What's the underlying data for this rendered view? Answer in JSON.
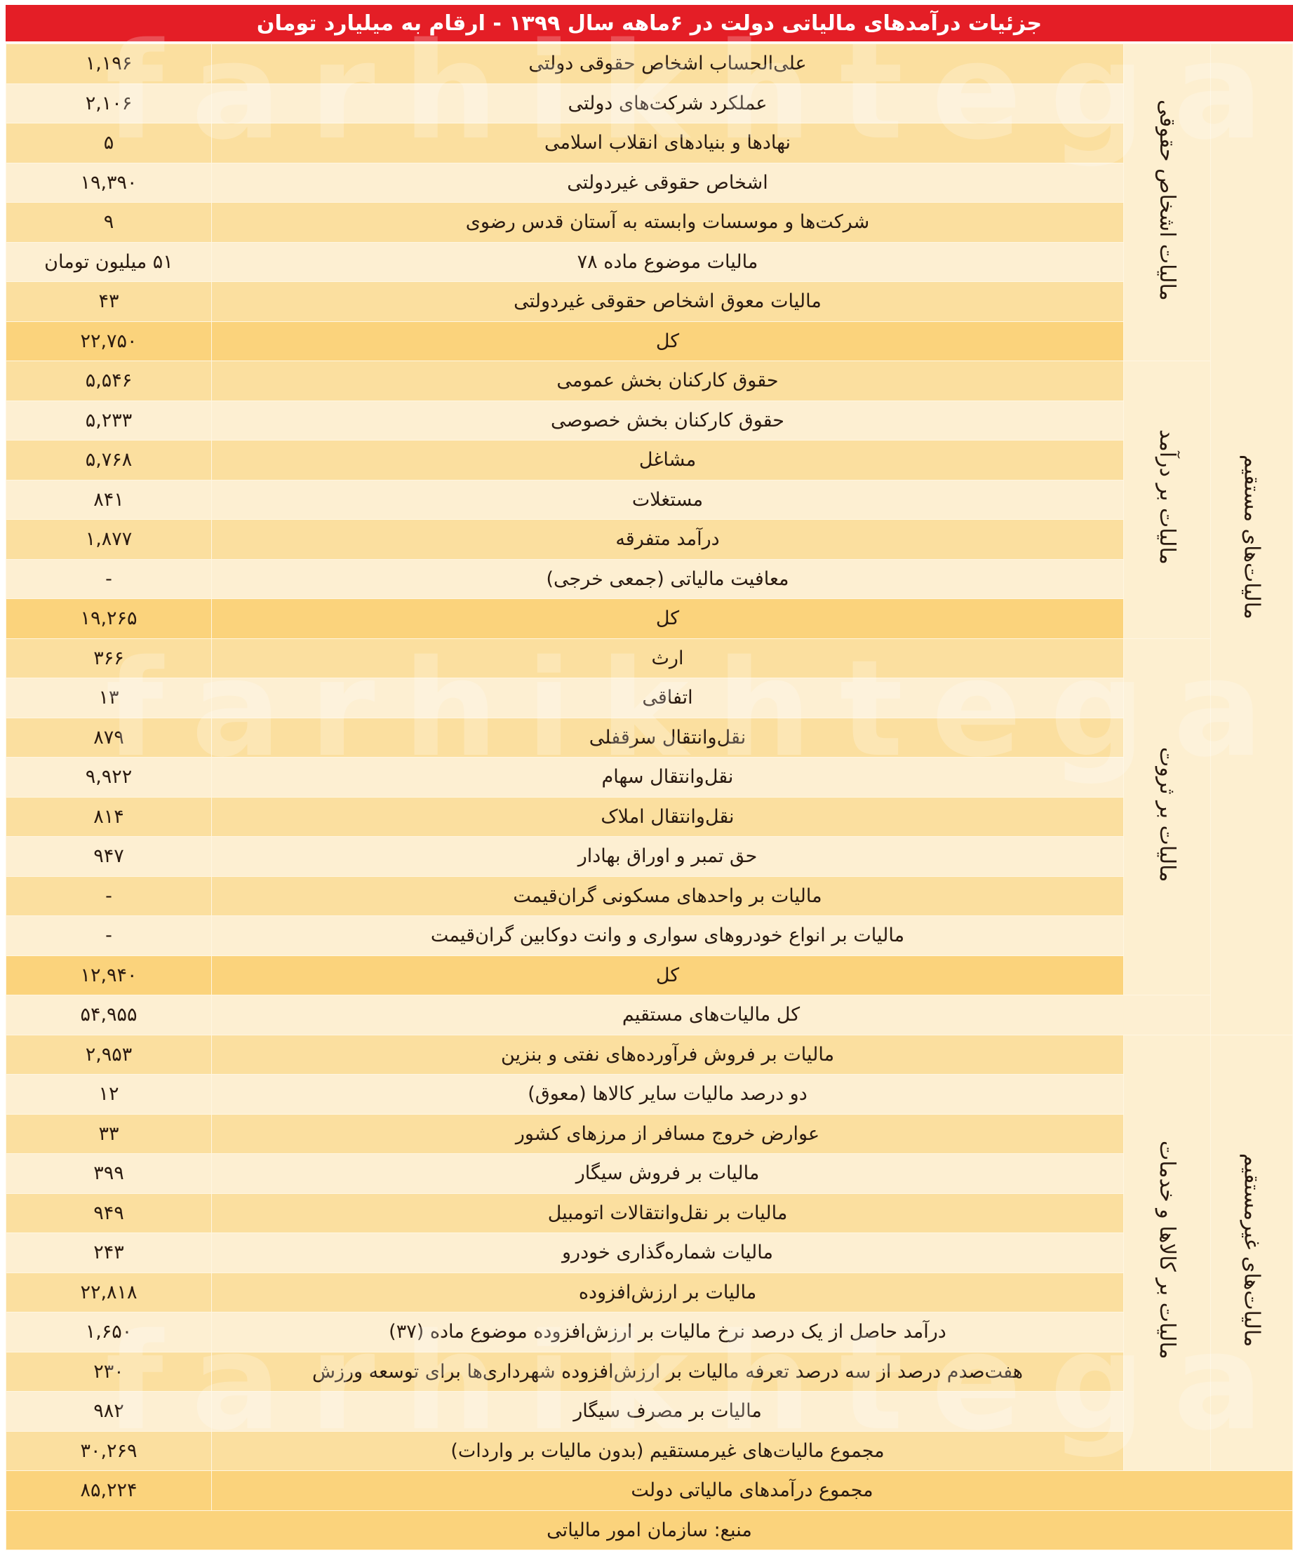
{
  "title": "جزئیات درآمدهای مالیاتی دولت در ۶ماهه سال ۱۳۹۹ - ارقام به میلیارد تومان",
  "colors": {
    "header": "#e41e26",
    "row_dark": "#fbdf9f",
    "row_light": "#fdefd2",
    "total_row": "#fbd37c"
  },
  "watermark": "farhikhtegan",
  "groups": [
    {
      "label": "مالیات‌های مستقیم",
      "subgroups": [
        {
          "label": "مالیات اشخاص حقوقی",
          "rows": [
            {
              "desc": "علی‌الحساب اشخاص حقوقی دولتی",
              "value": "۱,۱۹۶"
            },
            {
              "desc": "عملکرد شرکت‌های دولتی",
              "value": "۲,۱۰۶"
            },
            {
              "desc": "نهادها و بنیادهای انقلاب اسلامی",
              "value": "۵"
            },
            {
              "desc": "اشخاص حقوقی غیردولتی",
              "value": "۱۹,۳۹۰"
            },
            {
              "desc": "شرکت‌ها و موسسات وابسته به آستان قدس رضوی",
              "value": "۹"
            },
            {
              "desc": "مالیات موضوع ماده ۷۸",
              "value": "۵۱ میلیون تومان"
            },
            {
              "desc": "مالیات معوق اشخاص حقوقی غیردولتی",
              "value": "۴۳"
            }
          ],
          "total": {
            "desc": "کل",
            "value": "۲۲,۷۵۰"
          }
        },
        {
          "label": "مالیات بر درآمد",
          "rows": [
            {
              "desc": "حقوق کارکنان بخش عمومی",
              "value": "۵,۵۴۶"
            },
            {
              "desc": "حقوق کارکنان بخش خصوصی",
              "value": "۵,۲۳۳"
            },
            {
              "desc": "مشاغل",
              "value": "۵,۷۶۸"
            },
            {
              "desc": "مستغلات",
              "value": "۸۴۱"
            },
            {
              "desc": "درآمد متفرقه",
              "value": "۱,۸۷۷"
            },
            {
              "desc": "معافیت مالیاتی (جمعی خرجی)",
              "value": "-"
            }
          ],
          "total": {
            "desc": "کل",
            "value": "۱۹,۲۶۵"
          }
        },
        {
          "label": "مالیات بر ثروت",
          "rows": [
            {
              "desc": "ارث",
              "value": "۳۶۶"
            },
            {
              "desc": "اتفاقی",
              "value": "۱۳"
            },
            {
              "desc": "نقل‌وانتقال سرقفلی",
              "value": "۸۷۹"
            },
            {
              "desc": "نقل‌وانتقال سهام",
              "value": "۹,۹۲۲"
            },
            {
              "desc": "نقل‌وانتقال املاک",
              "value": "۸۱۴"
            },
            {
              "desc": "حق تمبر و اوراق بهادار",
              "value": "۹۴۷"
            },
            {
              "desc": "مالیات بر واحدهای مسکونی گران‌قیمت",
              "value": "-"
            },
            {
              "desc": "مالیات بر انواع خودروهای سواری و وانت دوکابین گران‌قیمت",
              "value": "-"
            }
          ],
          "total": {
            "desc": "کل",
            "value": "۱۲,۹۴۰"
          }
        }
      ],
      "total": {
        "desc": "کل مالیات‌های مستقیم",
        "value": "۵۴,۹۵۵"
      }
    },
    {
      "label": "مالیات‌های غیرمستقیم",
      "subgroups": [
        {
          "label": "مالیات بر کالاها و خدمات",
          "rows": [
            {
              "desc": "مالیات بر فروش فرآورده‌های نفتی و بنزین",
              "value": "۲,۹۵۳"
            },
            {
              "desc": "دو درصد مالیات سایر کالاها (معوق)",
              "value": "۱۲"
            },
            {
              "desc": "عوارض خروج مسافر از مرزهای کشور",
              "value": "۳۳"
            },
            {
              "desc": "مالیات بر فروش سیگار",
              "value": "۳۹۹"
            },
            {
              "desc": "مالیات بر نقل‌وانتقالات اتومبیل",
              "value": "۹۴۹"
            },
            {
              "desc": "مالیات شماره‌گذاری خودرو",
              "value": "۲۴۳"
            },
            {
              "desc": "مالیات بر ارزش‌افزوده",
              "value": "۲۲,۸۱۸"
            },
            {
              "desc": "درآمد حاصل از یک درصد نرخ مالیات بر ارزش‌افزوده موضوع ماده (۳۷)",
              "value": "۱,۶۵۰"
            },
            {
              "desc": "هفت‌صدم درصد از سه درصد تعرفه مالیات بر ارزش‌افزوده شهرداری‌ها برای توسعه ورزش",
              "value": "۲۳۰"
            },
            {
              "desc": "مالیات بر مصرف سیگار",
              "value": "۹۸۲"
            },
            {
              "desc": "مجموع مالیات‌های غیرمستقیم (بدون مالیات بر واردات)",
              "value": "۳۰,۲۶۹"
            }
          ]
        }
      ]
    }
  ],
  "grand_total": {
    "desc": "مجموع درآمدهای مالیاتی دولت",
    "value": "۸۵,۲۲۴"
  },
  "source": "منبع: سازمان امور مالیاتی"
}
